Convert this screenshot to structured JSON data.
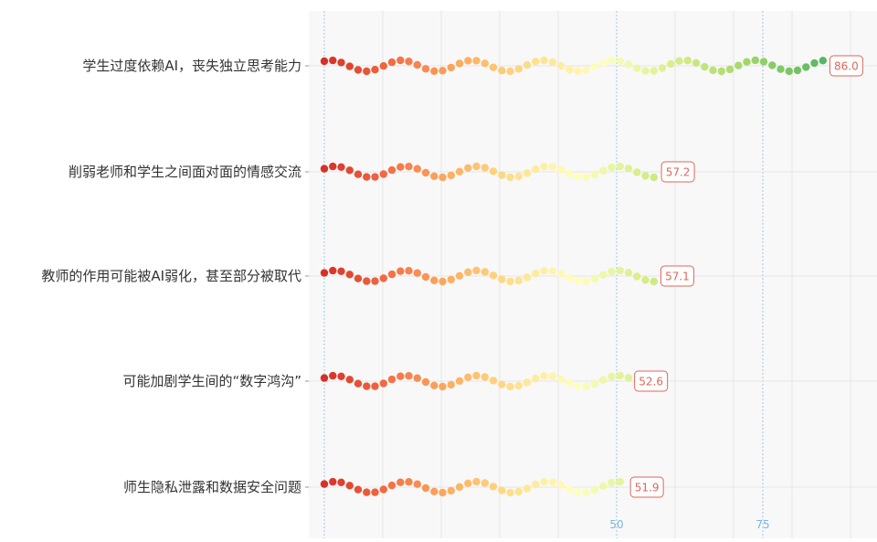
{
  "chart_data": {
    "type": "bar",
    "style": "dotted wave bars with value badges",
    "orientation": "horizontal",
    "categories": [
      "学生过度依赖AI，丧失独立思考能力",
      "削弱老师和学生之间面对面的情感交流",
      "教师的作用可能被AI弱化，甚至部分被取代",
      "可能加剧学生间的“数字鸿沟”",
      "师生隐私泄露和数据安全问题"
    ],
    "values": [
      86.0,
      57.2,
      57.1,
      52.6,
      51.9
    ],
    "value_labels": [
      "86.0",
      "57.2",
      "57.1",
      "52.6",
      "51.9"
    ],
    "x_ticks": [
      {
        "value": 50,
        "label": "50"
      },
      {
        "value": 75,
        "label": "75"
      }
    ],
    "xlim": [
      0,
      95
    ],
    "color_scale": "red → yellow → green along the value axis",
    "colors": {
      "scale_stops": [
        "#d73027",
        "#f46d43",
        "#fdae61",
        "#fee08b",
        "#ffffbf",
        "#d9ef8b",
        "#a6d96a",
        "#66bd63",
        "#1a9850"
      ],
      "badge": "#e0665a",
      "tick": "#7cb5e0",
      "grid": "#e6e6e6",
      "ref_line": "#9cc8ea",
      "plot_bg": "#f8f8f8"
    },
    "title": "",
    "xlabel": "",
    "ylabel": "",
    "grid": true,
    "legend": "none"
  }
}
